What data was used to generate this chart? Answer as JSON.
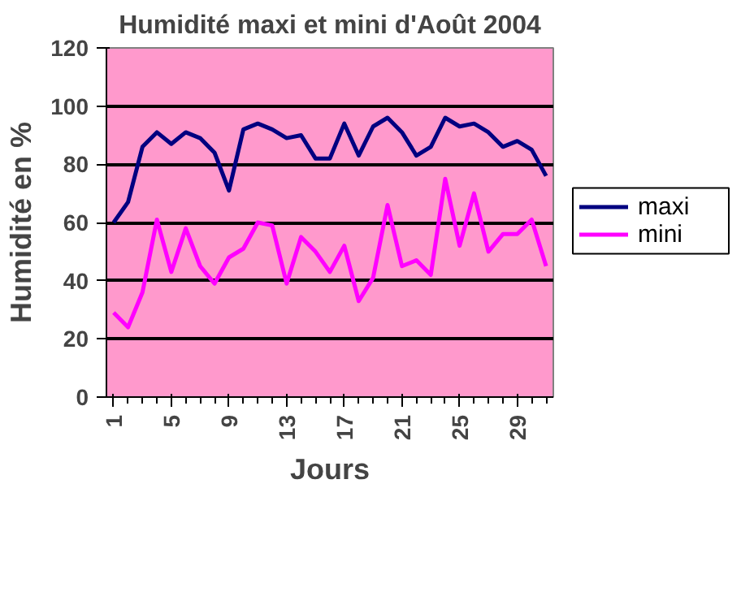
{
  "chart_data": {
    "type": "line",
    "title": "Humidité maxi et mini d'Août 2004",
    "xlabel": "Jours",
    "ylabel": "Humidité en %",
    "categories": [
      "1",
      null,
      null,
      null,
      "5",
      null,
      null,
      null,
      "9",
      null,
      null,
      null,
      "13",
      null,
      null,
      null,
      "17",
      null,
      null,
      null,
      "21",
      null,
      null,
      null,
      "25",
      null,
      null,
      null,
      "29",
      null,
      null
    ],
    "series": [
      {
        "name": "maxi",
        "color": "#000080",
        "values": [
          60,
          67,
          86,
          91,
          87,
          91,
          89,
          84,
          71,
          92,
          94,
          92,
          89,
          90,
          82,
          82,
          94,
          83,
          93,
          96,
          91,
          83,
          86,
          96,
          93,
          94,
          91,
          86,
          88,
          85,
          76
        ]
      },
      {
        "name": "mini",
        "color": "#ff00ff",
        "values": [
          29,
          24,
          36,
          61,
          43,
          58,
          45,
          39,
          48,
          51,
          60,
          59,
          39,
          55,
          50,
          43,
          52,
          33,
          41,
          66,
          45,
          47,
          42,
          75,
          52,
          70,
          50,
          56,
          56,
          61,
          45
        ]
      }
    ],
    "ylim": [
      0,
      120
    ],
    "yticks": [
      0,
      20,
      40,
      60,
      80,
      100,
      120
    ],
    "grid": "y",
    "legend": "right",
    "marker": "none",
    "line_style": "solid"
  }
}
